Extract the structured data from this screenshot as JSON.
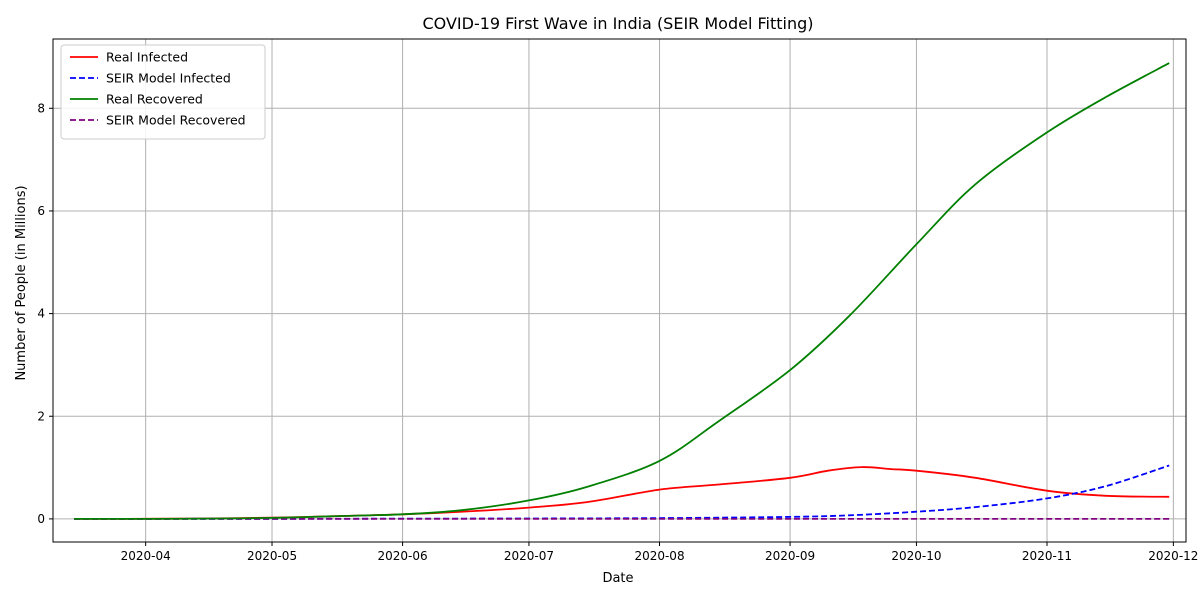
{
  "chart_data": {
    "type": "line",
    "title": "COVID-19 First Wave in India (SEIR Model Fitting)",
    "xlabel": "Date",
    "ylabel": "Number of People (in Millions)",
    "x_range": [
      "2020-03-15",
      "2020-11-30"
    ],
    "xlim": [
      "2020-03-10",
      "2020-12-04"
    ],
    "ylim": [
      -0.45,
      9.35
    ],
    "x_ticks": [
      {
        "date": "2020-04-01",
        "label": "2020-04"
      },
      {
        "date": "2020-05-01",
        "label": "2020-05"
      },
      {
        "date": "2020-06-01",
        "label": "2020-06"
      },
      {
        "date": "2020-07-01",
        "label": "2020-07"
      },
      {
        "date": "2020-08-01",
        "label": "2020-08"
      },
      {
        "date": "2020-09-01",
        "label": "2020-09"
      },
      {
        "date": "2020-10-01",
        "label": "2020-10"
      },
      {
        "date": "2020-11-01",
        "label": "2020-11"
      },
      {
        "date": "2020-12-01",
        "label": "2020-12"
      }
    ],
    "y_ticks": [
      0,
      2,
      4,
      6,
      8
    ],
    "grid": true,
    "legend": "top-left",
    "series": [
      {
        "name": "Real Infected",
        "color": "#ff0000",
        "style": "solid",
        "points": [
          [
            "2020-03-15",
            0.0
          ],
          [
            "2020-04-01",
            0.002
          ],
          [
            "2020-04-15",
            0.008
          ],
          [
            "2020-05-01",
            0.025
          ],
          [
            "2020-05-15",
            0.05
          ],
          [
            "2020-06-01",
            0.09
          ],
          [
            "2020-06-15",
            0.14
          ],
          [
            "2020-07-01",
            0.22
          ],
          [
            "2020-07-15",
            0.33
          ],
          [
            "2020-08-01",
            0.57
          ],
          [
            "2020-08-15",
            0.67
          ],
          [
            "2020-09-01",
            0.8
          ],
          [
            "2020-09-10",
            0.94
          ],
          [
            "2020-09-18",
            1.01
          ],
          [
            "2020-09-25",
            0.97
          ],
          [
            "2020-10-01",
            0.94
          ],
          [
            "2020-10-15",
            0.8
          ],
          [
            "2020-11-01",
            0.55
          ],
          [
            "2020-11-15",
            0.45
          ],
          [
            "2020-11-30",
            0.43
          ]
        ]
      },
      {
        "name": "SEIR Model Infected",
        "color": "#0000ff",
        "style": "dashed",
        "points": [
          [
            "2020-03-15",
            0.0
          ],
          [
            "2020-05-01",
            0.002
          ],
          [
            "2020-06-01",
            0.005
          ],
          [
            "2020-07-01",
            0.008
          ],
          [
            "2020-08-01",
            0.015
          ],
          [
            "2020-09-01",
            0.04
          ],
          [
            "2020-09-15",
            0.07
          ],
          [
            "2020-10-01",
            0.14
          ],
          [
            "2020-10-15",
            0.23
          ],
          [
            "2020-11-01",
            0.4
          ],
          [
            "2020-11-15",
            0.64
          ],
          [
            "2020-11-30",
            1.04
          ]
        ]
      },
      {
        "name": "Real Recovered",
        "color": "#008000",
        "style": "solid",
        "points": [
          [
            "2020-03-15",
            0.0
          ],
          [
            "2020-04-01",
            0.001
          ],
          [
            "2020-04-15",
            0.005
          ],
          [
            "2020-05-01",
            0.02
          ],
          [
            "2020-05-15",
            0.05
          ],
          [
            "2020-06-01",
            0.09
          ],
          [
            "2020-06-15",
            0.17
          ],
          [
            "2020-07-01",
            0.36
          ],
          [
            "2020-07-15",
            0.63
          ],
          [
            "2020-08-01",
            1.13
          ],
          [
            "2020-08-15",
            1.9
          ],
          [
            "2020-09-01",
            2.9
          ],
          [
            "2020-09-15",
            3.95
          ],
          [
            "2020-10-01",
            5.35
          ],
          [
            "2020-10-15",
            6.52
          ],
          [
            "2020-11-01",
            7.53
          ],
          [
            "2020-11-15",
            8.22
          ],
          [
            "2020-11-30",
            8.88
          ]
        ]
      },
      {
        "name": "SEIR Model Recovered",
        "color": "#800080",
        "style": "dashed",
        "points": [
          [
            "2020-03-15",
            0.0
          ],
          [
            "2020-06-01",
            0.0
          ],
          [
            "2020-09-01",
            0.0
          ],
          [
            "2020-11-30",
            0.0
          ]
        ]
      }
    ]
  }
}
